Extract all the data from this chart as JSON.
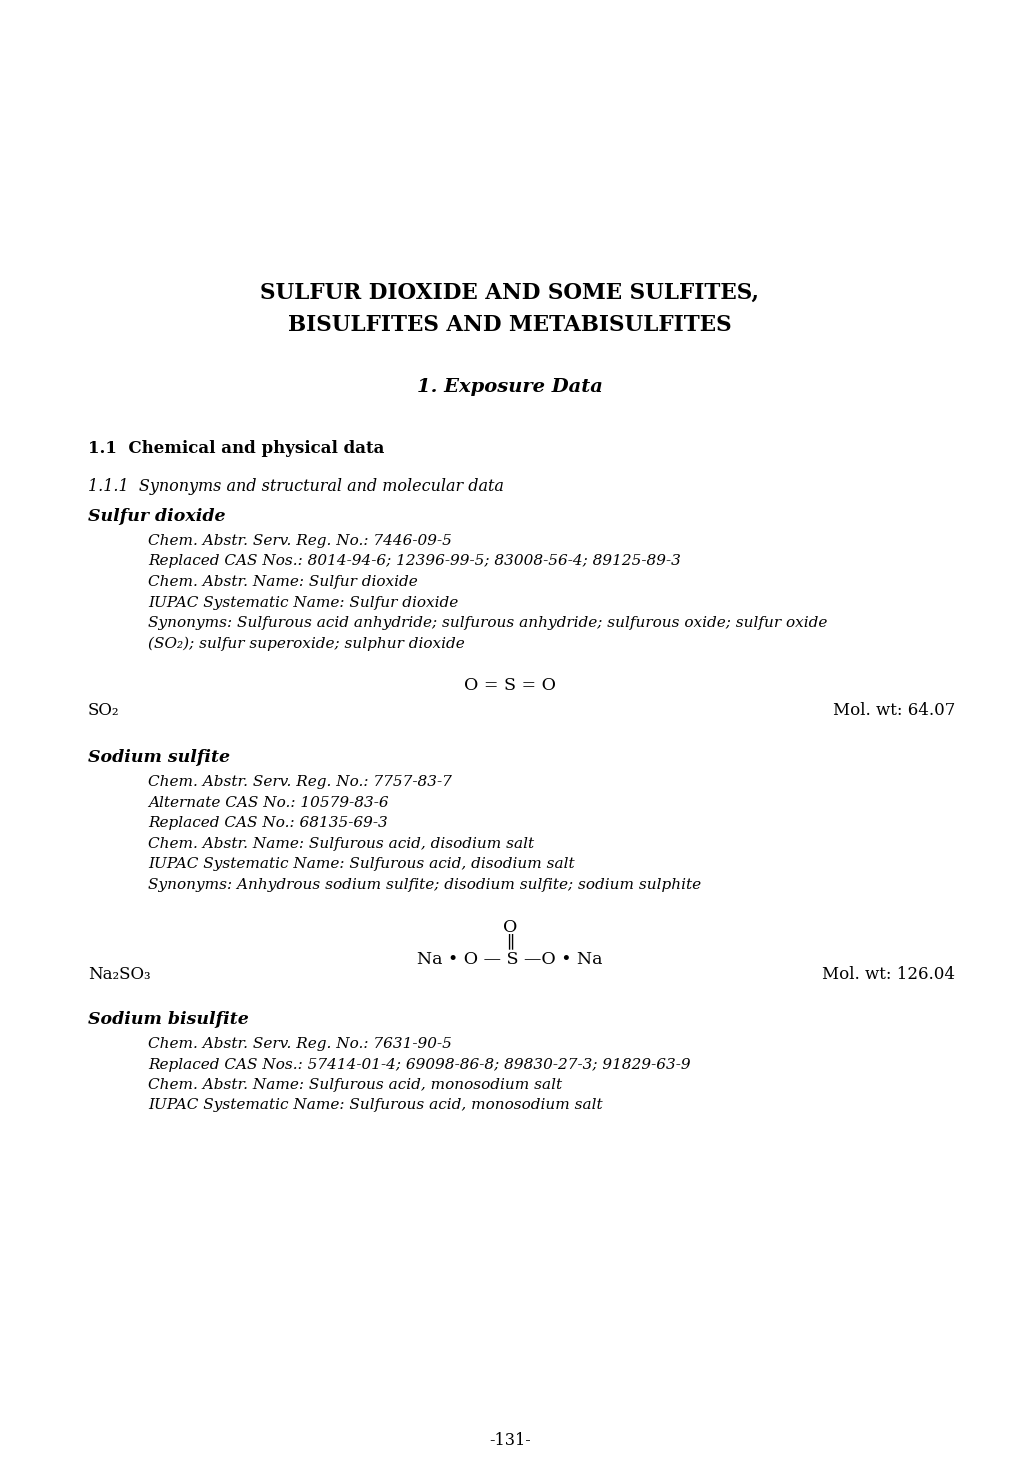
{
  "bg_color": "#ffffff",
  "title_line1": "SULFUR DIOXIDE AND SOME SULFITES,",
  "title_line2": "BISULFITES AND METABISULFITES",
  "section1": "1. Exposure Data",
  "section11": "1.1  Chemical and physical data",
  "section111": "1.1.1  Synonyms and structural and molecular data",
  "sd_heading": "Sulfur dioxide",
  "sd_cas": "Chem. Abstr. Serv. Reg. No.: 7446-09-5",
  "sd_replaced": "Replaced CAS Nos.: 8014-94-6; 12396-99-5; 83008-56-4; 89125-89-3",
  "sd_name": "Chem. Abstr. Name: Sulfur dioxide",
  "sd_iupac": "IUPAC Systematic Name: Sulfur dioxide",
  "sd_syn1": "Synonyms: Sulfurous acid anhydride; sulfurous anhydride; sulfurous oxide; sulfur oxide",
  "sd_syn2": "(SO₂); sulfur superoxide; sulphur dioxide",
  "sd_formula_display": "O = S = O",
  "sd_mol_formula": "SO₂",
  "sd_mol_wt": "Mol. wt: 64.07",
  "ss_heading": "Sodium sulfite",
  "ss_cas": "Chem. Abstr. Serv. Reg. No.: 7757-83-7",
  "ss_alt": "Alternate CAS No.: 10579-83-6",
  "ss_replaced": "Replaced CAS No.: 68135-69-3",
  "ss_name": "Chem. Abstr. Name: Sulfurous acid, disodium salt",
  "ss_iupac": "IUPAC Systematic Name: Sulfurous acid, disodium salt",
  "ss_syn": "Synonyms: Anhydrous sodium sulfite; disodium sulfite; sodium sulphite",
  "ss_struct_o": "O",
  "ss_struct_dbl": "∥",
  "ss_struct_main": "Na • O — S —O • Na",
  "ss_mol_formula": "Na₂SO₃",
  "ss_mol_wt": "Mol. wt: 126.04",
  "sb_heading": "Sodium bisulfite",
  "sb_cas": "Chem. Abstr. Serv. Reg. No.: 7631-90-5",
  "sb_replaced": "Replaced CAS Nos.: 57414-01-4; 69098-86-8; 89830-27-3; 91829-63-9",
  "sb_name": "Chem. Abstr. Name: Sulfurous acid, monosodium salt",
  "sb_iupac": "IUPAC Systematic Name: Sulfurous acid, monosodium salt",
  "page_number": "-131-"
}
